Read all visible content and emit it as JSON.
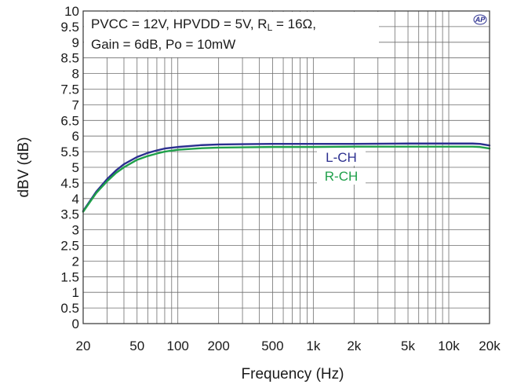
{
  "chart_data": {
    "type": "line",
    "title": "",
    "xlabel": "Frequency (Hz)",
    "ylabel": "dBV (dB)",
    "x_scale": "log",
    "xlim": [
      20,
      20000
    ],
    "ylim": [
      0,
      10
    ],
    "grid": true,
    "x_ticks": [
      {
        "value": 20,
        "label": "20"
      },
      {
        "value": 50,
        "label": "50"
      },
      {
        "value": 100,
        "label": "100"
      },
      {
        "value": 200,
        "label": "200"
      },
      {
        "value": 500,
        "label": "500"
      },
      {
        "value": 1000,
        "label": "1k"
      },
      {
        "value": 2000,
        "label": "2k"
      },
      {
        "value": 5000,
        "label": "5k"
      },
      {
        "value": 10000,
        "label": "10k"
      },
      {
        "value": 20000,
        "label": "20k"
      }
    ],
    "y_ticks": [
      "0",
      "0.5",
      "1",
      "1.5",
      "2",
      "2.5",
      "3",
      "3.5",
      "4",
      "4.5",
      "5",
      "5.5",
      "6",
      "6.5",
      "7",
      "7.5",
      "8",
      "8.5",
      "9",
      "9.5",
      "10"
    ],
    "annotation": {
      "line1_pre": "PVCC = 12V, HPVDD = 5V, R",
      "line1_sub": "L",
      "line1_post": " = 16Ω,",
      "line2": "Gain = 6dB, Po = 10mW"
    },
    "logo_text": "AP",
    "series": [
      {
        "name": "L-CH",
        "color": "#2b2f8f",
        "points": [
          [
            20,
            3.6
          ],
          [
            25,
            4.22
          ],
          [
            30,
            4.62
          ],
          [
            35,
            4.9
          ],
          [
            40,
            5.1
          ],
          [
            50,
            5.33
          ],
          [
            60,
            5.46
          ],
          [
            70,
            5.54
          ],
          [
            80,
            5.6
          ],
          [
            100,
            5.65
          ],
          [
            150,
            5.71
          ],
          [
            200,
            5.73
          ],
          [
            300,
            5.74
          ],
          [
            500,
            5.75
          ],
          [
            1000,
            5.75
          ],
          [
            2000,
            5.75
          ],
          [
            5000,
            5.76
          ],
          [
            10000,
            5.76
          ],
          [
            15000,
            5.76
          ],
          [
            17000,
            5.75
          ],
          [
            20000,
            5.7
          ]
        ]
      },
      {
        "name": "R-CH",
        "color": "#1fa04a",
        "points": [
          [
            20,
            3.58
          ],
          [
            25,
            4.18
          ],
          [
            30,
            4.55
          ],
          [
            35,
            4.82
          ],
          [
            40,
            5.0
          ],
          [
            50,
            5.24
          ],
          [
            60,
            5.36
          ],
          [
            70,
            5.44
          ],
          [
            80,
            5.5
          ],
          [
            100,
            5.56
          ],
          [
            150,
            5.61
          ],
          [
            200,
            5.63
          ],
          [
            300,
            5.64
          ],
          [
            500,
            5.65
          ],
          [
            1000,
            5.65
          ],
          [
            2000,
            5.66
          ],
          [
            5000,
            5.66
          ],
          [
            10000,
            5.66
          ],
          [
            15000,
            5.66
          ],
          [
            17000,
            5.65
          ],
          [
            20000,
            5.6
          ]
        ]
      }
    ]
  }
}
